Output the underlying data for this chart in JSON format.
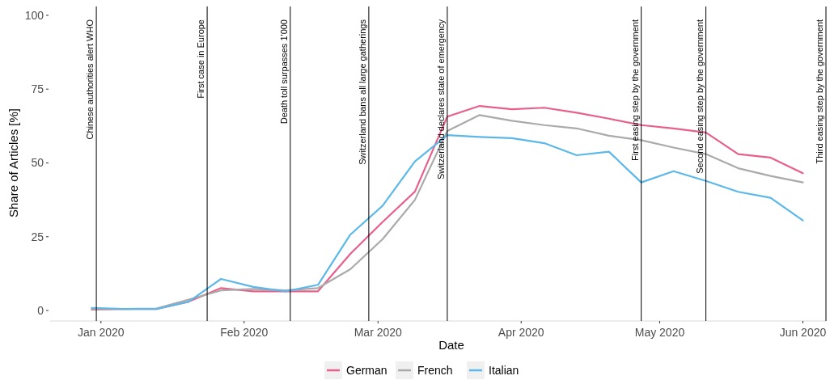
{
  "chart_data": {
    "type": "line",
    "xlabel": "Date",
    "ylabel": "Share of Articles [%]",
    "x": [
      "2019-12-30",
      "2020-01-06",
      "2020-01-13",
      "2020-01-20",
      "2020-01-27",
      "2020-02-03",
      "2020-02-10",
      "2020-02-17",
      "2020-02-24",
      "2020-03-02",
      "2020-03-09",
      "2020-03-16",
      "2020-03-23",
      "2020-03-30",
      "2020-04-06",
      "2020-04-13",
      "2020-04-20",
      "2020-04-27",
      "2020-05-04",
      "2020-05-11",
      "2020-05-18",
      "2020-05-25",
      "2020-06-01"
    ],
    "series": [
      {
        "name": "German",
        "color": "#e8608a",
        "values": [
          0.3,
          0.5,
          0.5,
          3,
          7.6,
          6.5,
          6.5,
          6.5,
          19.2,
          30,
          40.3,
          65.7,
          69.3,
          68.2,
          68.7,
          67,
          65,
          62.8,
          61.7,
          60.3,
          53,
          51.8,
          46.5
        ]
      },
      {
        "name": "French",
        "color": "#aaaaaa",
        "values": [
          0.5,
          0.5,
          0.7,
          3.7,
          6.8,
          7.3,
          6.8,
          7.6,
          14,
          24.2,
          37.5,
          60.8,
          66.2,
          64.3,
          62.8,
          61.7,
          59.2,
          57.7,
          55.2,
          53,
          48.2,
          45.6,
          43.4
        ]
      },
      {
        "name": "Italian",
        "color": "#5bb8e8",
        "values": [
          0.9,
          0.5,
          0.5,
          3,
          10.7,
          8,
          6.5,
          8.7,
          25.7,
          35.5,
          50.5,
          59.4,
          58.8,
          58.4,
          56.7,
          52.6,
          53.8,
          43.4,
          47.2,
          43.9,
          40.2,
          38.2,
          30.5
        ]
      }
    ],
    "xlim": [
      "2019-12-21",
      "2020-06-06"
    ],
    "xticks": [
      {
        "value": "2020-01-01",
        "label": "Jan 2020"
      },
      {
        "value": "2020-02-01",
        "label": "Feb 2020"
      },
      {
        "value": "2020-03-01",
        "label": "Mar 2020"
      },
      {
        "value": "2020-04-01",
        "label": "Apr 2020"
      },
      {
        "value": "2020-05-01",
        "label": "May 2020"
      },
      {
        "value": "2020-06-01",
        "label": "Jun 2020"
      }
    ],
    "ylim": [
      -3,
      103
    ],
    "yticks": [
      0,
      25,
      50,
      75,
      100
    ],
    "ref_lines": [
      {
        "axis": "x",
        "value": "2019-12-31",
        "label": "Chinese authorities alert WHO",
        "color": "#000000"
      },
      {
        "axis": "x",
        "value": "2020-01-24",
        "label": "First case in Europe",
        "color": "#000000"
      },
      {
        "axis": "x",
        "value": "2020-02-11",
        "label": "Death toll surpasses 1'000",
        "color": "#000000"
      },
      {
        "axis": "x",
        "value": "2020-02-28",
        "label": "Switzerland bans all large gatherings",
        "color": "#000000"
      },
      {
        "axis": "x",
        "value": "2020-03-16",
        "label": "Switzerland declares state of emergency",
        "color": "#000000"
      },
      {
        "axis": "x",
        "value": "2020-04-27",
        "label": "First easing step by the government",
        "color": "#000000"
      },
      {
        "axis": "x",
        "value": "2020-05-11",
        "label": "Second easing step by the government",
        "color": "#000000"
      },
      {
        "axis": "x",
        "value": "2020-06-06",
        "label": "Third easing step by the government",
        "color": "#000000"
      }
    ],
    "grid": false,
    "legend": "bottom",
    "marker": "none",
    "line_style": "solid"
  }
}
